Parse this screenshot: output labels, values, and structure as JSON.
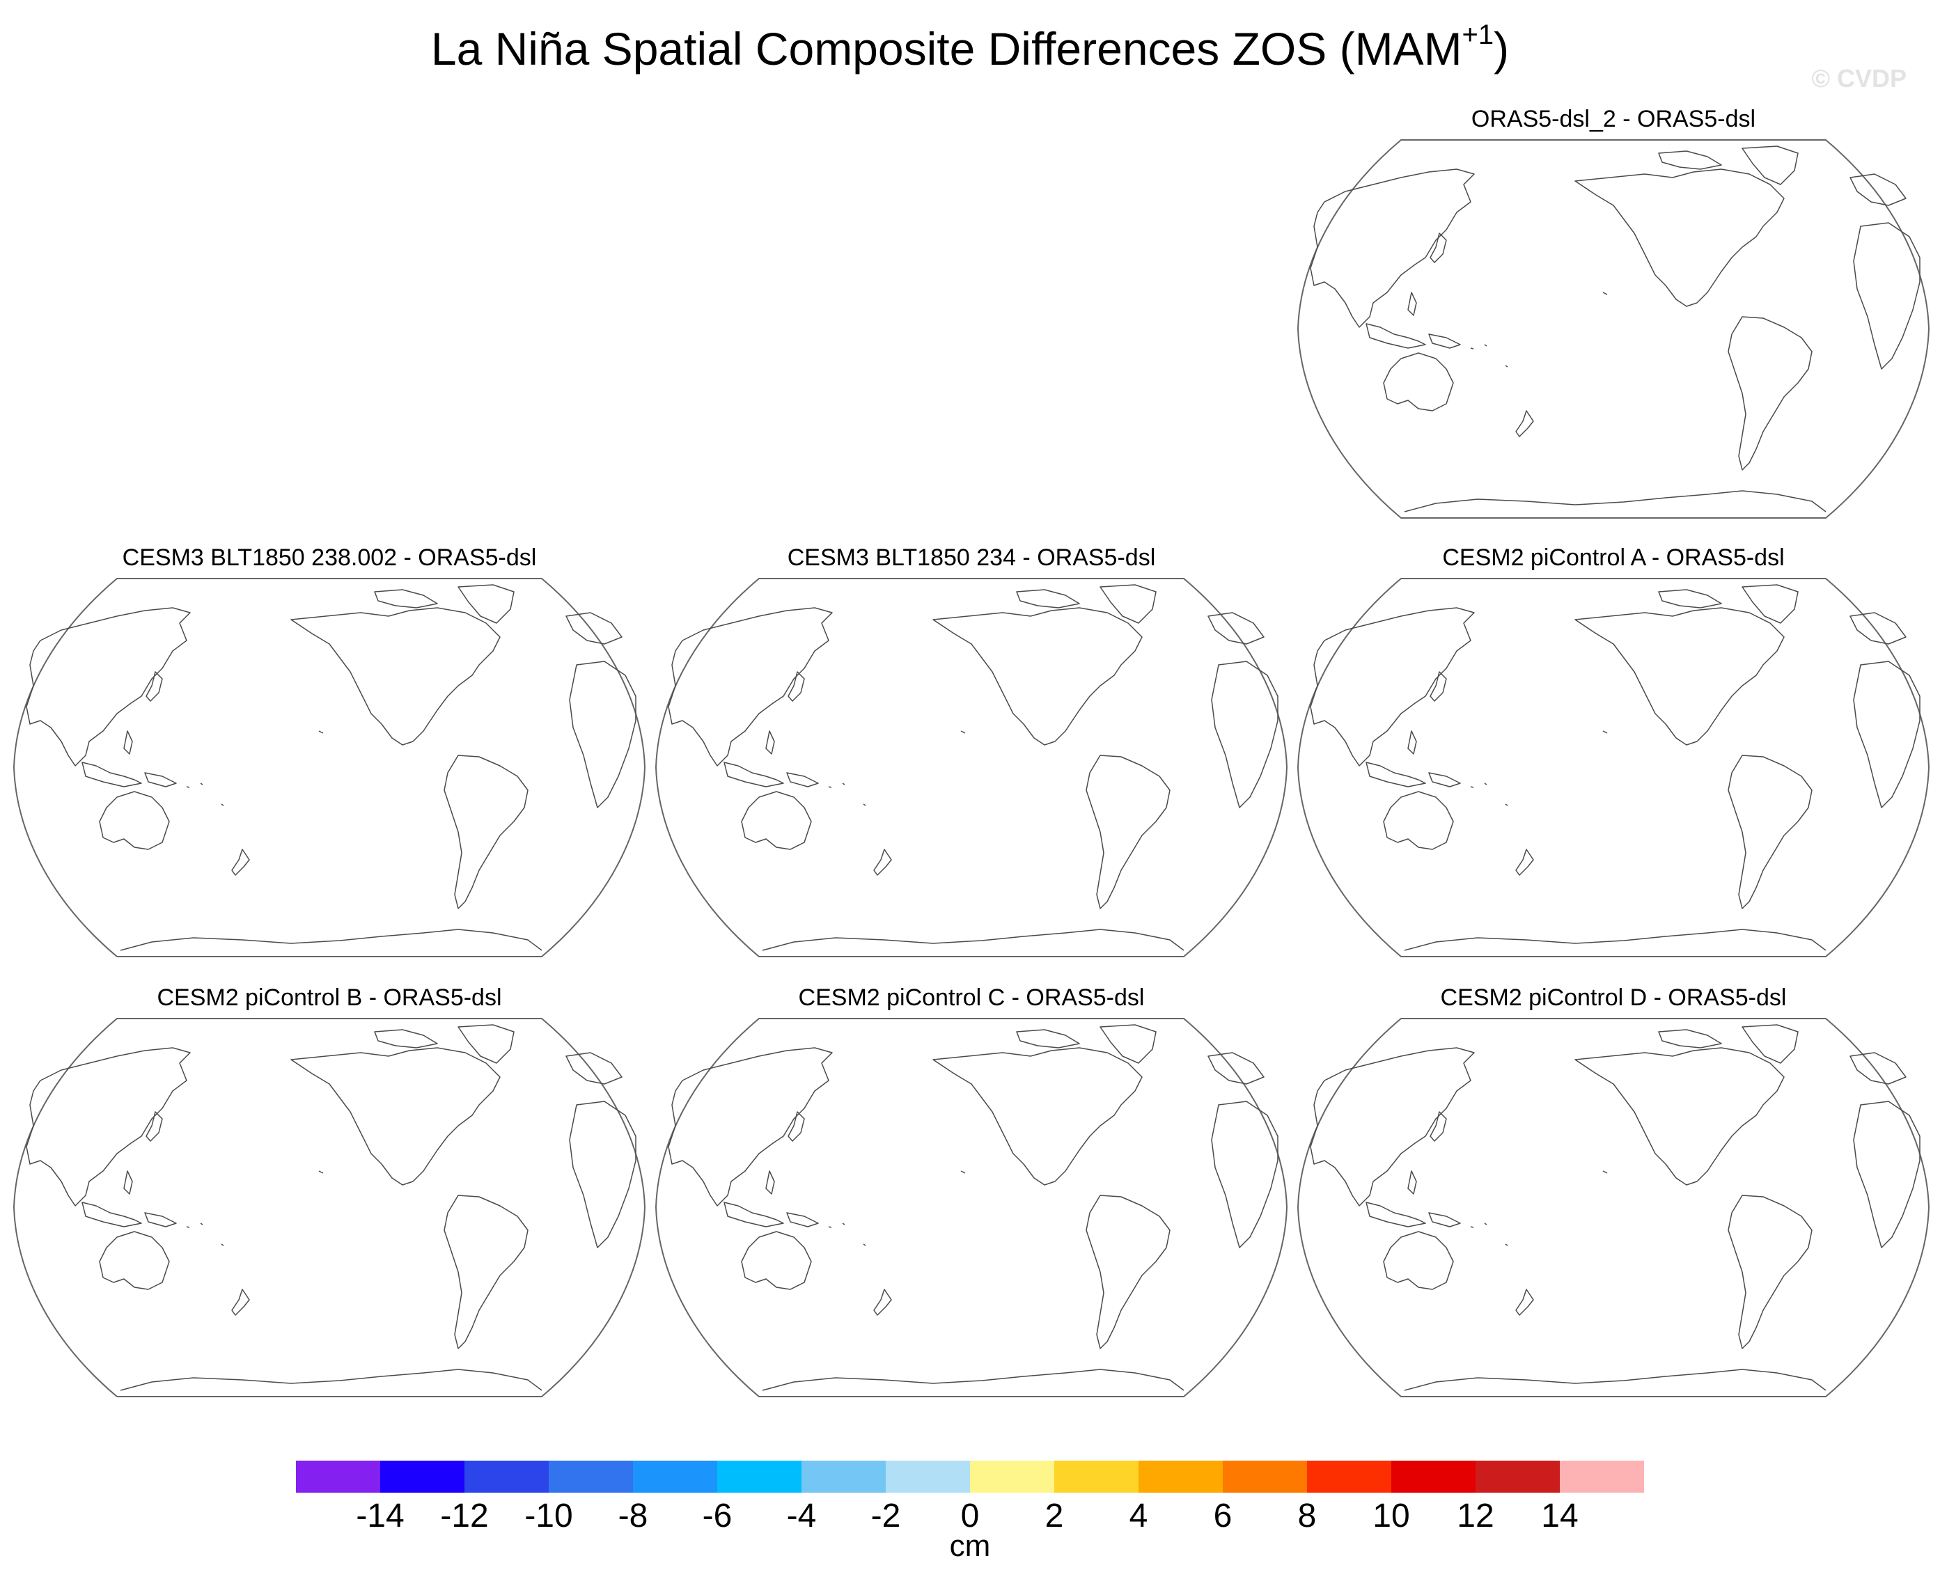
{
  "figure": {
    "title": "La Niña Spatial Composite Differences ZOS (MAM",
    "title_superscript": "+1",
    "title_close": ")",
    "watermark": "© CVDP"
  },
  "panels": [
    {
      "title": "ORAS5-dsl_2 - ORAS5-dsl"
    },
    {
      "title": "CESM3 BLT1850 238.002 - ORAS5-dsl"
    },
    {
      "title": "CESM3 BLT1850 234 - ORAS5-dsl"
    },
    {
      "title": "CESM2 piControl A - ORAS5-dsl"
    },
    {
      "title": "CESM2 piControl B - ORAS5-dsl"
    },
    {
      "title": "CESM2 piControl C - ORAS5-dsl"
    },
    {
      "title": "CESM2 piControl D - ORAS5-dsl"
    }
  ],
  "colorbar": {
    "colors": [
      "#8420f0",
      "#1b00ff",
      "#2c45ea",
      "#3174ee",
      "#1b94fb",
      "#00bdfe",
      "#74c7f5",
      "#b1dff5",
      "#fef58b",
      "#fed428",
      "#fea800",
      "#fe7900",
      "#fd2f00",
      "#e40000",
      "#cc1c1c",
      "#fdb3b3"
    ],
    "labels": [
      "-14",
      "-12",
      "-10",
      "-8",
      "-6",
      "-4",
      "-2",
      "0",
      "2",
      "4",
      "6",
      "8",
      "10",
      "12",
      "14"
    ],
    "units": "cm"
  }
}
